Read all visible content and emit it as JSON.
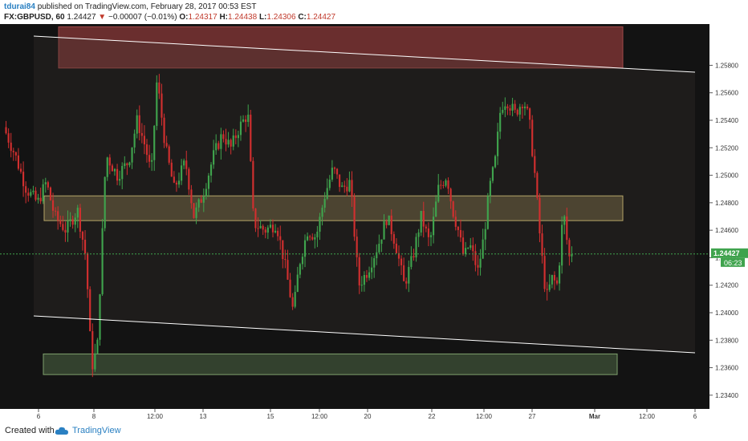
{
  "header": {
    "author": "tdurai84",
    "published_text": "published on TradingView.com, February 28, 2017 00:53 EST",
    "symbol": "FX:GBPUSD, 60",
    "last": "1.24427",
    "change_arrow": "▼",
    "change": "−0.00007 (−0.01%)",
    "o_label": "O:",
    "o_value": "1.24317",
    "h_label": "H:",
    "h_value": "1.24438",
    "l_label": "L:",
    "l_value": "1.24306",
    "c_label": "C:",
    "c_value": "1.24427"
  },
  "footer": {
    "created_with": "Created with",
    "brand": "TradingView",
    "logo_icon": "tradingview-cloud-icon"
  },
  "chart_data": {
    "type": "candlestick",
    "ylim": [
      1.233,
      1.261
    ],
    "y_ticks": [
      "1.25800",
      "1.25600",
      "1.25400",
      "1.25200",
      "1.25000",
      "1.24800",
      "1.24600",
      "1.24400",
      "1.24200",
      "1.24000",
      "1.23800",
      "1.23600",
      "1.23400"
    ],
    "x_ticks": [
      "6",
      "8",
      "12:00",
      "13",
      "15",
      "12:00",
      "20",
      "22",
      "12:00",
      "27",
      "Mar",
      "12:00",
      "6"
    ],
    "last_price_label": "1.24427",
    "countdown_label": "06:23",
    "last_price": 1.24427,
    "colors": {
      "up": "#3fa34d",
      "down": "#d12f2f",
      "resistance_zone": "#7a3434",
      "pivot_zone": "#c9b36a",
      "support_zone": "#5c7a4f",
      "channel": "#ffffff",
      "price_line": "#3fa34d"
    },
    "zones": [
      {
        "name": "resistance",
        "y_low": 1.2578,
        "y_high": 1.2608
      },
      {
        "name": "pivot",
        "y_low": 1.2467,
        "y_high": 1.2485
      },
      {
        "name": "support",
        "y_low": 1.2355,
        "y_high": 1.237
      }
    ],
    "key_prices": [
      {
        "x": 0.0,
        "price": 1.2535
      },
      {
        "x": 0.02,
        "price": 1.2515
      },
      {
        "x": 0.04,
        "price": 1.249
      },
      {
        "x": 0.06,
        "price": 1.248
      },
      {
        "x": 0.075,
        "price": 1.2495
      },
      {
        "x": 0.09,
        "price": 1.247
      },
      {
        "x": 0.11,
        "price": 1.246
      },
      {
        "x": 0.13,
        "price": 1.2475
      },
      {
        "x": 0.145,
        "price": 1.244
      },
      {
        "x": 0.155,
        "price": 1.236
      },
      {
        "x": 0.165,
        "price": 1.2375
      },
      {
        "x": 0.18,
        "price": 1.2515
      },
      {
        "x": 0.2,
        "price": 1.25
      },
      {
        "x": 0.22,
        "price": 1.251
      },
      {
        "x": 0.235,
        "price": 1.254
      },
      {
        "x": 0.25,
        "price": 1.252
      },
      {
        "x": 0.26,
        "price": 1.25
      },
      {
        "x": 0.27,
        "price": 1.257
      },
      {
        "x": 0.285,
        "price": 1.252
      },
      {
        "x": 0.3,
        "price": 1.249
      },
      {
        "x": 0.32,
        "price": 1.251
      },
      {
        "x": 0.335,
        "price": 1.247
      },
      {
        "x": 0.35,
        "price": 1.2485
      },
      {
        "x": 0.37,
        "price": 1.2515
      },
      {
        "x": 0.385,
        "price": 1.253
      },
      {
        "x": 0.4,
        "price": 1.252
      },
      {
        "x": 0.415,
        "price": 1.2535
      },
      {
        "x": 0.43,
        "price": 1.2545
      },
      {
        "x": 0.44,
        "price": 1.2465
      },
      {
        "x": 0.46,
        "price": 1.246
      },
      {
        "x": 0.48,
        "price": 1.2465
      },
      {
        "x": 0.495,
        "price": 1.2435
      },
      {
        "x": 0.51,
        "price": 1.24
      },
      {
        "x": 0.52,
        "price": 1.2435
      },
      {
        "x": 0.535,
        "price": 1.246
      },
      {
        "x": 0.55,
        "price": 1.2455
      },
      {
        "x": 0.565,
        "price": 1.2485
      },
      {
        "x": 0.58,
        "price": 1.2505
      },
      {
        "x": 0.595,
        "price": 1.249
      },
      {
        "x": 0.61,
        "price": 1.2495
      },
      {
        "x": 0.625,
        "price": 1.242
      },
      {
        "x": 0.64,
        "price": 1.243
      },
      {
        "x": 0.66,
        "price": 1.245
      },
      {
        "x": 0.675,
        "price": 1.247
      },
      {
        "x": 0.69,
        "price": 1.245
      },
      {
        "x": 0.705,
        "price": 1.242
      },
      {
        "x": 0.72,
        "price": 1.244
      },
      {
        "x": 0.735,
        "price": 1.247
      },
      {
        "x": 0.75,
        "price": 1.245
      },
      {
        "x": 0.765,
        "price": 1.249
      },
      {
        "x": 0.78,
        "price": 1.25
      },
      {
        "x": 0.79,
        "price": 1.2475
      },
      {
        "x": 0.8,
        "price": 1.246
      },
      {
        "x": 0.81,
        "price": 1.244
      },
      {
        "x": 0.82,
        "price": 1.245
      },
      {
        "x": 0.835,
        "price": 1.243
      },
      {
        "x": 0.845,
        "price": 1.2455
      },
      {
        "x": 0.855,
        "price": 1.249
      },
      {
        "x": 0.865,
        "price": 1.251
      },
      {
        "x": 0.875,
        "price": 1.255
      },
      {
        "x": 0.885,
        "price": 1.2555
      },
      {
        "x": 0.9,
        "price": 1.2545
      },
      {
        "x": 0.915,
        "price": 1.2555
      },
      {
        "x": 0.925,
        "price": 1.254
      },
      {
        "x": 0.935,
        "price": 1.25
      },
      {
        "x": 0.945,
        "price": 1.245
      },
      {
        "x": 0.955,
        "price": 1.241
      },
      {
        "x": 0.965,
        "price": 1.2425
      },
      {
        "x": 0.975,
        "price": 1.242
      },
      {
        "x": 0.985,
        "price": 1.2475
      },
      {
        "x": 0.995,
        "price": 1.244
      },
      {
        "x": 1.0,
        "price": 1.24427
      }
    ]
  }
}
